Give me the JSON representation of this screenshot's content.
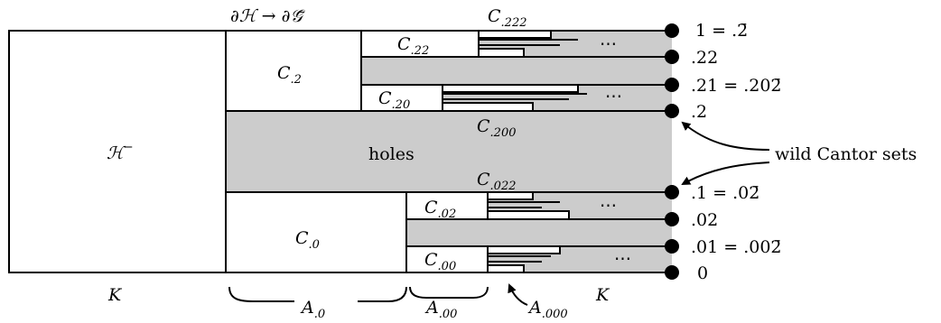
{
  "top_label": "∂ℋ → ∂𝒢̄",
  "regions": {
    "h_minus": "ℋ",
    "h_minus_sup": "−",
    "holes": "holes"
  },
  "cells": [
    {
      "id": "c2",
      "base": "C",
      "sub": ".2"
    },
    {
      "id": "c22",
      "base": "C",
      "sub": ".22"
    },
    {
      "id": "c20",
      "base": "C",
      "sub": ".20"
    },
    {
      "id": "c222",
      "base": "C",
      "sub": ".222"
    },
    {
      "id": "c200",
      "base": "C",
      "sub": ".200"
    },
    {
      "id": "c022",
      "base": "C",
      "sub": ".022"
    },
    {
      "id": "c0",
      "base": "C",
      "sub": ".0"
    },
    {
      "id": "c02",
      "base": "C",
      "sub": ".02"
    },
    {
      "id": "c00",
      "base": "C",
      "sub": ".00"
    }
  ],
  "ellipsis": "⋯",
  "endpoints": [
    {
      "id": "p1",
      "text": "1 = .2̄"
    },
    {
      "id": "p22",
      "text": ".22"
    },
    {
      "id": "p21",
      "text": ".21 = .202̄"
    },
    {
      "id": "p2",
      "text": ".2"
    },
    {
      "id": "p1b",
      "text": ".1 = .02̄"
    },
    {
      "id": "p02",
      "text": ".02"
    },
    {
      "id": "p01",
      "text": ".01 = .002̄"
    },
    {
      "id": "p0",
      "text": "0"
    }
  ],
  "annotations": {
    "wild": "wild Cantor sets"
  },
  "bottom": {
    "k_left": "K",
    "k_right": "K",
    "a0": {
      "base": "A",
      "sub": ".0"
    },
    "a00": {
      "base": "A",
      "sub": ".00"
    },
    "a000": {
      "base": "A",
      "sub": ".000"
    }
  }
}
